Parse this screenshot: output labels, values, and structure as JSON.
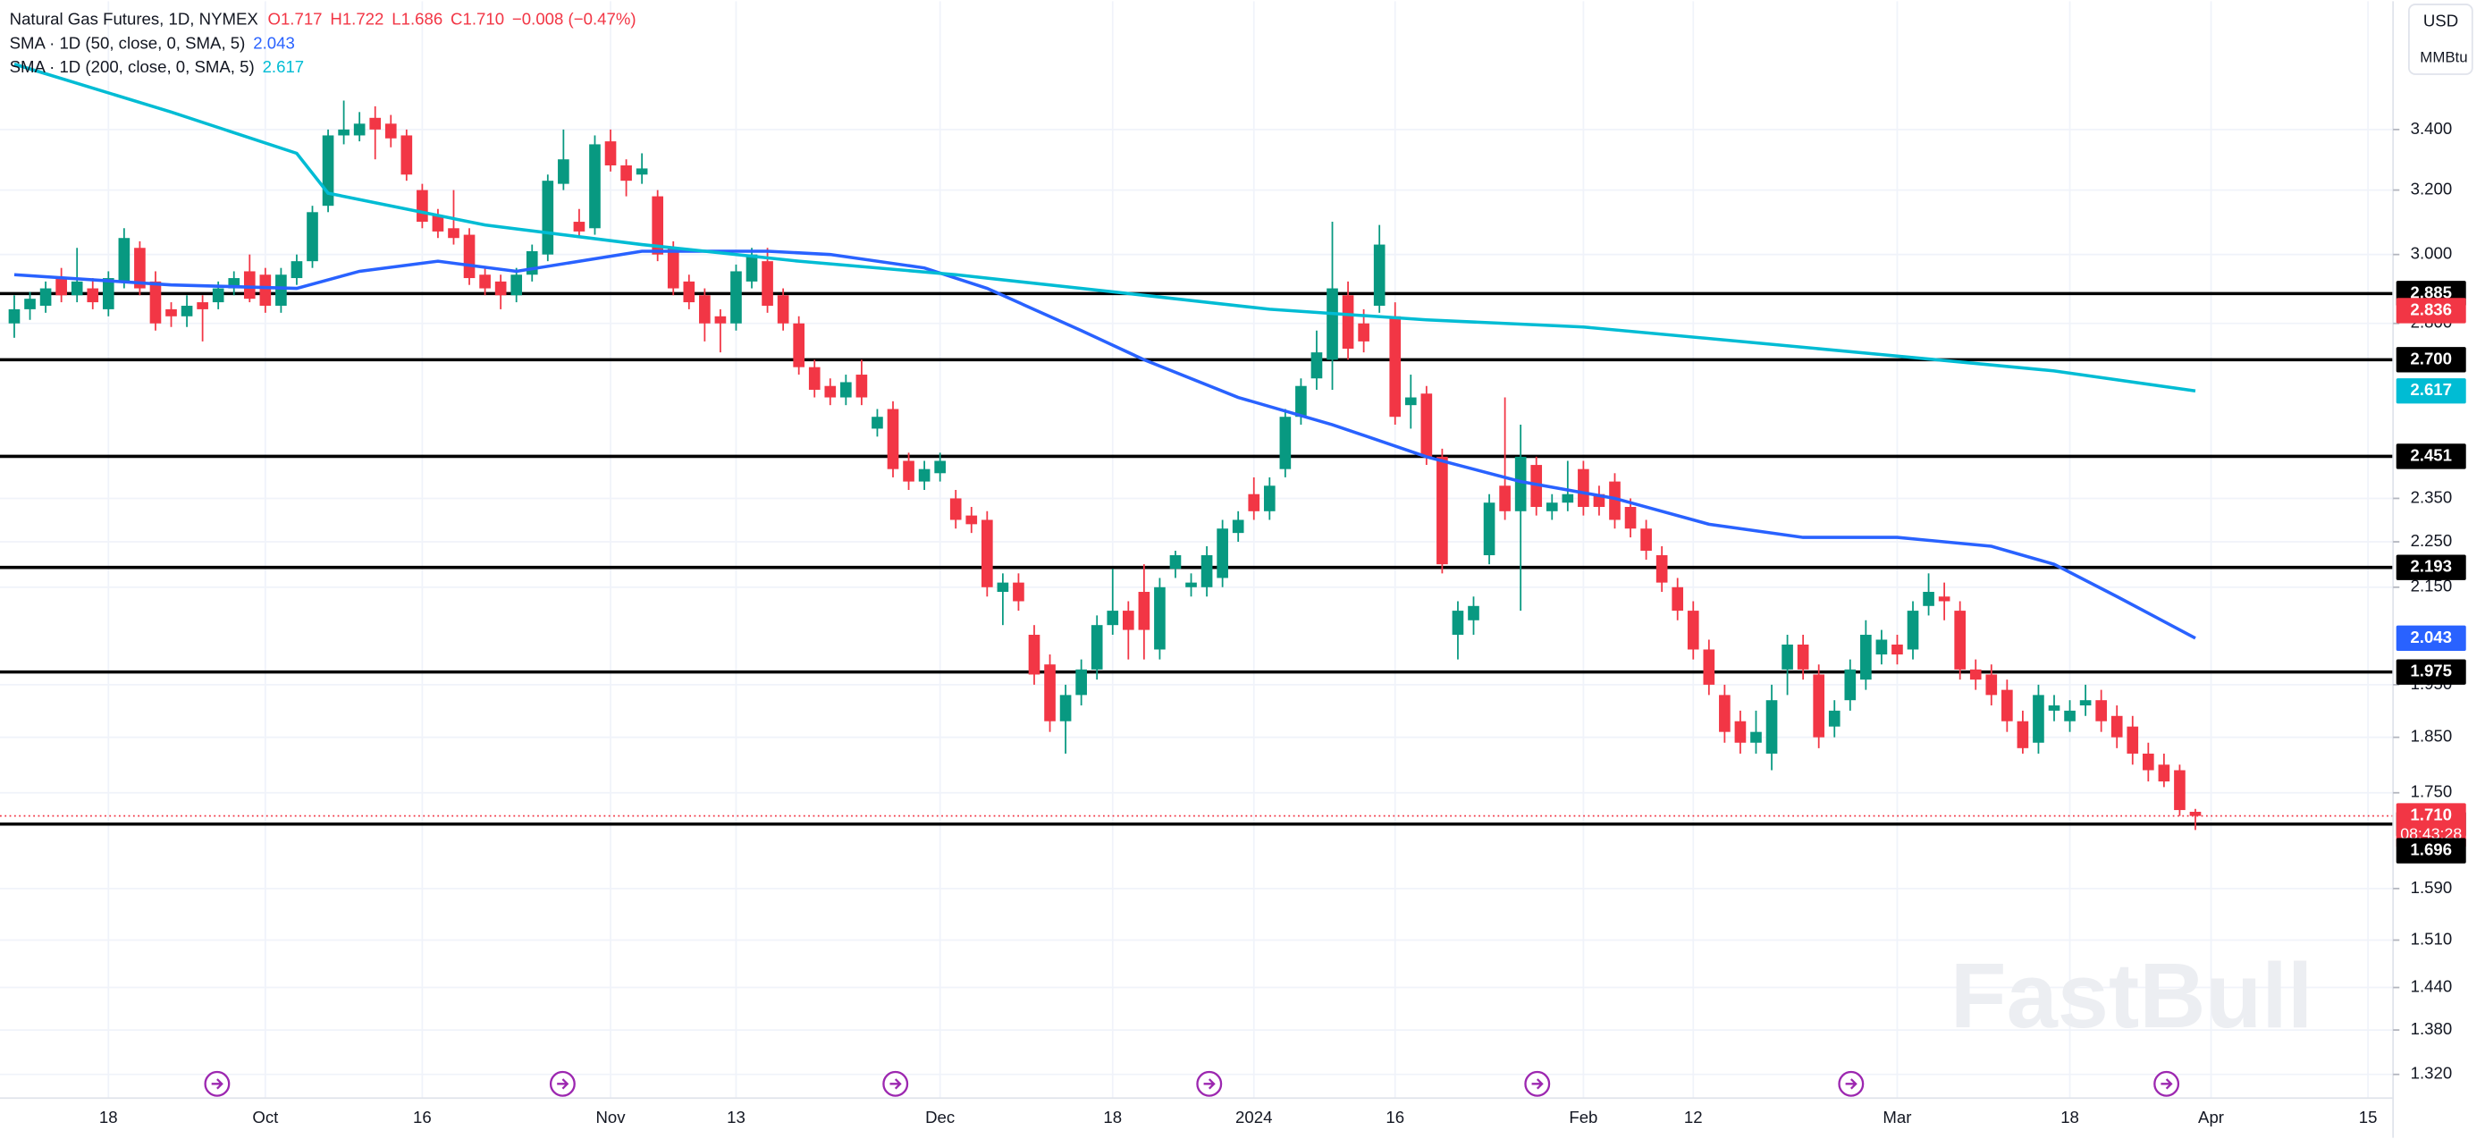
{
  "chart_data": {
    "type": "candlestick",
    "title": "Natural Gas Futures, 1D, NYMEX",
    "ohlc_legend": [
      "O1.717",
      "H1.722",
      "L1.686",
      "C1.710",
      "−0.008 (−0.47%)"
    ],
    "currency": "USD",
    "unit": "MMBtu",
    "watermark": "FastBull",
    "countdown": "08:43:28",
    "log_scale": true,
    "grid": true,
    "up_color": "#089981",
    "down_color": "#f23645",
    "level_color": "#000000",
    "xlim": [
      -0.91,
      151.6
    ],
    "ylim": [
      1.289,
      3.866
    ],
    "xticks": [
      {
        "value": 6,
        "label": "18"
      },
      {
        "value": 16,
        "label": "Oct"
      },
      {
        "value": 26,
        "label": "16"
      },
      {
        "value": 38,
        "label": "Nov"
      },
      {
        "value": 46,
        "label": "13"
      },
      {
        "value": 59,
        "label": "Dec"
      },
      {
        "value": 70,
        "label": "18"
      },
      {
        "value": 79,
        "label": "2024"
      },
      {
        "value": 88,
        "label": "16"
      },
      {
        "value": 100,
        "label": "Feb"
      },
      {
        "value": 107,
        "label": "12"
      },
      {
        "value": 120,
        "label": "Mar"
      },
      {
        "value": 131,
        "label": "18"
      },
      {
        "value": 140,
        "label": "Apr"
      },
      {
        "value": 150,
        "label": "15"
      }
    ],
    "yticks": [
      {
        "value": 3.4,
        "label": "3.400"
      },
      {
        "value": 3.2,
        "label": "3.200"
      },
      {
        "value": 3.0,
        "label": "3.000"
      },
      {
        "value": 2.8,
        "label": "2.800"
      },
      {
        "value": 2.35,
        "label": "2.350"
      },
      {
        "value": 2.25,
        "label": "2.250"
      },
      {
        "value": 2.15,
        "label": "2.150"
      },
      {
        "value": 1.95,
        "label": "1.950"
      },
      {
        "value": 1.85,
        "label": "1.850"
      },
      {
        "value": 1.75,
        "label": "1.750"
      },
      {
        "value": 1.59,
        "label": "1.590"
      },
      {
        "value": 1.51,
        "label": "1.510"
      },
      {
        "value": 1.44,
        "label": "1.440"
      },
      {
        "value": 1.38,
        "label": "1.380"
      },
      {
        "value": 1.32,
        "label": "1.320"
      }
    ],
    "levels": [
      2.885,
      {
        "value": 2.7,
        "label": "2.700"
      },
      2.451,
      2.193,
      1.975,
      1.696
    ],
    "last_price": {
      "value": 1.71,
      "label": "1.710"
    },
    "marker_tag": 2.836,
    "candles": [
      [
        2.8,
        2.88,
        2.76,
        2.84
      ],
      [
        2.84,
        2.89,
        2.81,
        2.87
      ],
      [
        2.85,
        2.92,
        2.83,
        2.9
      ],
      [
        2.93,
        2.96,
        2.86,
        2.88
      ],
      [
        2.88,
        3.02,
        2.86,
        2.92
      ],
      [
        2.9,
        2.93,
        2.84,
        2.86
      ],
      [
        2.84,
        2.95,
        2.82,
        2.93
      ],
      [
        2.92,
        3.08,
        2.9,
        3.05
      ],
      [
        3.02,
        3.04,
        2.88,
        2.9
      ],
      [
        2.92,
        2.95,
        2.78,
        2.8
      ],
      [
        2.84,
        2.86,
        2.79,
        2.82
      ],
      [
        2.82,
        2.88,
        2.79,
        2.85
      ],
      [
        2.86,
        2.88,
        2.75,
        2.84
      ],
      [
        2.86,
        2.92,
        2.84,
        2.9
      ],
      [
        2.9,
        2.95,
        2.88,
        2.93
      ],
      [
        2.95,
        3.0,
        2.86,
        2.87
      ],
      [
        2.94,
        2.96,
        2.83,
        2.85
      ],
      [
        2.85,
        2.96,
        2.83,
        2.94
      ],
      [
        2.93,
        3.0,
        2.91,
        2.98
      ],
      [
        2.98,
        3.15,
        2.96,
        3.13
      ],
      [
        3.15,
        3.4,
        3.13,
        3.38
      ],
      [
        3.38,
        3.5,
        3.35,
        3.4
      ],
      [
        3.38,
        3.46,
        3.36,
        3.42
      ],
      [
        3.44,
        3.48,
        3.3,
        3.4
      ],
      [
        3.42,
        3.45,
        3.34,
        3.37
      ],
      [
        3.38,
        3.4,
        3.23,
        3.25
      ],
      [
        3.2,
        3.22,
        3.08,
        3.1
      ],
      [
        3.12,
        3.14,
        3.05,
        3.07
      ],
      [
        3.08,
        3.2,
        3.03,
        3.05
      ],
      [
        3.06,
        3.08,
        2.91,
        2.93
      ],
      [
        2.94,
        2.96,
        2.88,
        2.9
      ],
      [
        2.92,
        2.94,
        2.84,
        2.88
      ],
      [
        2.88,
        2.96,
        2.86,
        2.94
      ],
      [
        2.94,
        3.03,
        2.92,
        3.01
      ],
      [
        3.0,
        3.25,
        2.98,
        3.23
      ],
      [
        3.22,
        3.4,
        3.2,
        3.3
      ],
      [
        3.1,
        3.14,
        3.05,
        3.07
      ],
      [
        3.08,
        3.38,
        3.06,
        3.35
      ],
      [
        3.36,
        3.4,
        3.26,
        3.28
      ],
      [
        3.28,
        3.3,
        3.18,
        3.23
      ],
      [
        3.25,
        3.32,
        3.22,
        3.27
      ],
      [
        3.18,
        3.2,
        2.98,
        3.0
      ],
      [
        3.02,
        3.04,
        2.88,
        2.9
      ],
      [
        2.92,
        2.94,
        2.84,
        2.86
      ],
      [
        2.88,
        2.9,
        2.75,
        2.8
      ],
      [
        2.82,
        2.84,
        2.72,
        2.8
      ],
      [
        2.8,
        2.97,
        2.78,
        2.95
      ],
      [
        2.92,
        3.02,
        2.9,
        3.0
      ],
      [
        2.98,
        3.02,
        2.83,
        2.85
      ],
      [
        2.88,
        2.9,
        2.78,
        2.8
      ],
      [
        2.8,
        2.82,
        2.66,
        2.68
      ],
      [
        2.68,
        2.7,
        2.6,
        2.62
      ],
      [
        2.63,
        2.65,
        2.58,
        2.6
      ],
      [
        2.6,
        2.66,
        2.58,
        2.64
      ],
      [
        2.66,
        2.7,
        2.58,
        2.6
      ],
      [
        2.52,
        2.57,
        2.5,
        2.55
      ],
      [
        2.57,
        2.59,
        2.4,
        2.42
      ],
      [
        2.44,
        2.46,
        2.37,
        2.39
      ],
      [
        2.39,
        2.44,
        2.37,
        2.42
      ],
      [
        2.41,
        2.46,
        2.39,
        2.44
      ],
      [
        2.35,
        2.37,
        2.28,
        2.3
      ],
      [
        2.31,
        2.33,
        2.27,
        2.29
      ],
      [
        2.3,
        2.32,
        2.13,
        2.15
      ],
      [
        2.14,
        2.18,
        2.07,
        2.16
      ],
      [
        2.16,
        2.18,
        2.1,
        2.12
      ],
      [
        2.05,
        2.07,
        1.95,
        1.97
      ],
      [
        1.99,
        2.01,
        1.86,
        1.88
      ],
      [
        1.88,
        1.95,
        1.82,
        1.93
      ],
      [
        1.93,
        2.0,
        1.91,
        1.98
      ],
      [
        1.98,
        2.09,
        1.96,
        2.07
      ],
      [
        2.07,
        2.19,
        2.05,
        2.1
      ],
      [
        2.1,
        2.12,
        2.0,
        2.06
      ],
      [
        2.14,
        2.2,
        2.0,
        2.06
      ],
      [
        2.02,
        2.17,
        2.0,
        2.15
      ],
      [
        2.19,
        2.23,
        2.17,
        2.22
      ],
      [
        2.15,
        2.18,
        2.13,
        2.16
      ],
      [
        2.15,
        2.24,
        2.13,
        2.22
      ],
      [
        2.17,
        2.3,
        2.15,
        2.28
      ],
      [
        2.27,
        2.32,
        2.25,
        2.3
      ],
      [
        2.36,
        2.4,
        2.3,
        2.32
      ],
      [
        2.32,
        2.4,
        2.3,
        2.38
      ],
      [
        2.42,
        2.57,
        2.4,
        2.55
      ],
      [
        2.55,
        2.65,
        2.53,
        2.63
      ],
      [
        2.65,
        2.78,
        2.62,
        2.72
      ],
      [
        2.7,
        3.1,
        2.62,
        2.9
      ],
      [
        2.88,
        2.92,
        2.7,
        2.73
      ],
      [
        2.8,
        2.84,
        2.72,
        2.75
      ],
      [
        2.85,
        3.09,
        2.83,
        3.03
      ],
      [
        2.82,
        2.86,
        2.53,
        2.55
      ],
      [
        2.58,
        2.66,
        2.52,
        2.6
      ],
      [
        2.61,
        2.63,
        2.43,
        2.45
      ],
      [
        2.45,
        2.47,
        2.18,
        2.2
      ],
      [
        2.05,
        2.12,
        2.0,
        2.1
      ],
      [
        2.08,
        2.13,
        2.05,
        2.11
      ],
      [
        2.22,
        2.36,
        2.2,
        2.34
      ],
      [
        2.38,
        2.6,
        2.3,
        2.32
      ],
      [
        2.32,
        2.53,
        2.1,
        2.45
      ],
      [
        2.43,
        2.45,
        2.31,
        2.33
      ],
      [
        2.32,
        2.36,
        2.3,
        2.34
      ],
      [
        2.34,
        2.44,
        2.32,
        2.36
      ],
      [
        2.42,
        2.44,
        2.31,
        2.33
      ],
      [
        2.36,
        2.38,
        2.31,
        2.33
      ],
      [
        2.39,
        2.41,
        2.28,
        2.3
      ],
      [
        2.33,
        2.35,
        2.26,
        2.28
      ],
      [
        2.28,
        2.3,
        2.21,
        2.23
      ],
      [
        2.22,
        2.24,
        2.14,
        2.16
      ],
      [
        2.15,
        2.17,
        2.08,
        2.1
      ],
      [
        2.1,
        2.12,
        2.0,
        2.02
      ],
      [
        2.02,
        2.04,
        1.93,
        1.95
      ],
      [
        1.93,
        1.95,
        1.84,
        1.86
      ],
      [
        1.88,
        1.9,
        1.82,
        1.84
      ],
      [
        1.84,
        1.9,
        1.82,
        1.86
      ],
      [
        1.82,
        1.95,
        1.79,
        1.92
      ],
      [
        1.98,
        2.05,
        1.93,
        2.03
      ],
      [
        2.03,
        2.05,
        1.96,
        1.98
      ],
      [
        1.97,
        1.99,
        1.83,
        1.85
      ],
      [
        1.87,
        1.92,
        1.85,
        1.9
      ],
      [
        1.92,
        2.0,
        1.9,
        1.98
      ],
      [
        1.96,
        2.08,
        1.94,
        2.05
      ],
      [
        2.01,
        2.06,
        1.99,
        2.04
      ],
      [
        2.03,
        2.05,
        1.99,
        2.01
      ],
      [
        2.02,
        2.12,
        2.0,
        2.1
      ],
      [
        2.11,
        2.18,
        2.09,
        2.14
      ],
      [
        2.13,
        2.16,
        2.08,
        2.12
      ],
      [
        2.1,
        2.12,
        1.96,
        1.98
      ],
      [
        1.98,
        2.0,
        1.94,
        1.96
      ],
      [
        1.97,
        1.99,
        1.91,
        1.93
      ],
      [
        1.94,
        1.96,
        1.86,
        1.88
      ],
      [
        1.88,
        1.9,
        1.82,
        1.83
      ],
      [
        1.84,
        1.95,
        1.82,
        1.93
      ],
      [
        1.9,
        1.93,
        1.88,
        1.91
      ],
      [
        1.88,
        1.92,
        1.86,
        1.9
      ],
      [
        1.91,
        1.95,
        1.89,
        1.92
      ],
      [
        1.92,
        1.94,
        1.86,
        1.88
      ],
      [
        1.89,
        1.91,
        1.83,
        1.85
      ],
      [
        1.87,
        1.89,
        1.8,
        1.82
      ],
      [
        1.82,
        1.84,
        1.77,
        1.79
      ],
      [
        1.8,
        1.82,
        1.76,
        1.77
      ],
      [
        1.79,
        1.8,
        1.71,
        1.72
      ],
      [
        1.717,
        1.722,
        1.686,
        1.71
      ]
    ],
    "series": [
      {
        "name": "SMA · 1D (50, close, 0, SMA, 5)",
        "color": "#2962ff",
        "x": [
          0,
          10,
          18,
          22,
          27,
          32,
          40,
          48,
          52,
          58,
          62,
          68,
          72,
          78,
          84,
          90,
          96,
          102,
          108,
          114,
          120,
          126,
          130,
          134,
          139
        ],
        "values": [
          2.94,
          2.91,
          2.9,
          2.95,
          2.98,
          2.95,
          3.01,
          3.01,
          3.0,
          2.96,
          2.9,
          2.78,
          2.7,
          2.6,
          2.53,
          2.45,
          2.39,
          2.35,
          2.29,
          2.26,
          2.26,
          2.24,
          2.2,
          2.13,
          2.043
        ]
      },
      {
        "name": "SMA · 1D (200, close, 0, SMA, 5)",
        "color": "#00bcd4",
        "x": [
          0,
          10,
          18,
          20,
          30,
          40,
          50,
          60,
          70,
          80,
          90,
          100,
          110,
          120,
          130,
          139
        ],
        "values": [
          3.63,
          3.46,
          3.32,
          3.19,
          3.09,
          3.03,
          2.98,
          2.94,
          2.89,
          2.84,
          2.81,
          2.79,
          2.75,
          2.71,
          2.67,
          2.617
        ]
      }
    ]
  }
}
